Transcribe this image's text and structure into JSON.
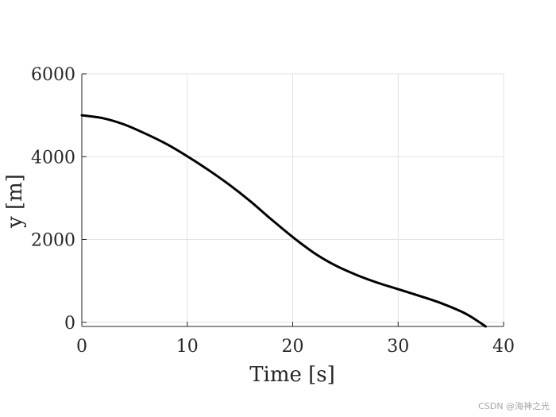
{
  "chart_data": {
    "type": "line",
    "title": "",
    "xlabel": "Time [s]",
    "ylabel": "y [m]",
    "xlim": [
      0,
      40
    ],
    "ylim": [
      -100,
      6000
    ],
    "xticks": [
      0,
      10,
      20,
      30,
      40
    ],
    "yticks": [
      0,
      2000,
      4000,
      6000
    ],
    "xtick_labels": [
      "0",
      "10",
      "20",
      "30",
      "40"
    ],
    "ytick_labels": [
      "0",
      "2000",
      "4000",
      "6000"
    ],
    "grid": true,
    "box": "partial (top and right edges open)",
    "colors": {
      "line": "#000000",
      "grid": "#e3e3e3",
      "axis": "#262626"
    },
    "series": [
      {
        "x": [
          0,
          2,
          4,
          6,
          8,
          10,
          12,
          14,
          16,
          18,
          20,
          22,
          24,
          26,
          28,
          30,
          32,
          34,
          36,
          37,
          38.3
        ],
        "y": [
          5000,
          4930,
          4780,
          4560,
          4310,
          4010,
          3680,
          3320,
          2920,
          2480,
          2060,
          1680,
          1380,
          1150,
          960,
          800,
          640,
          470,
          260,
          120,
          -100
        ]
      }
    ]
  },
  "watermark": "CSDN @海神之光"
}
